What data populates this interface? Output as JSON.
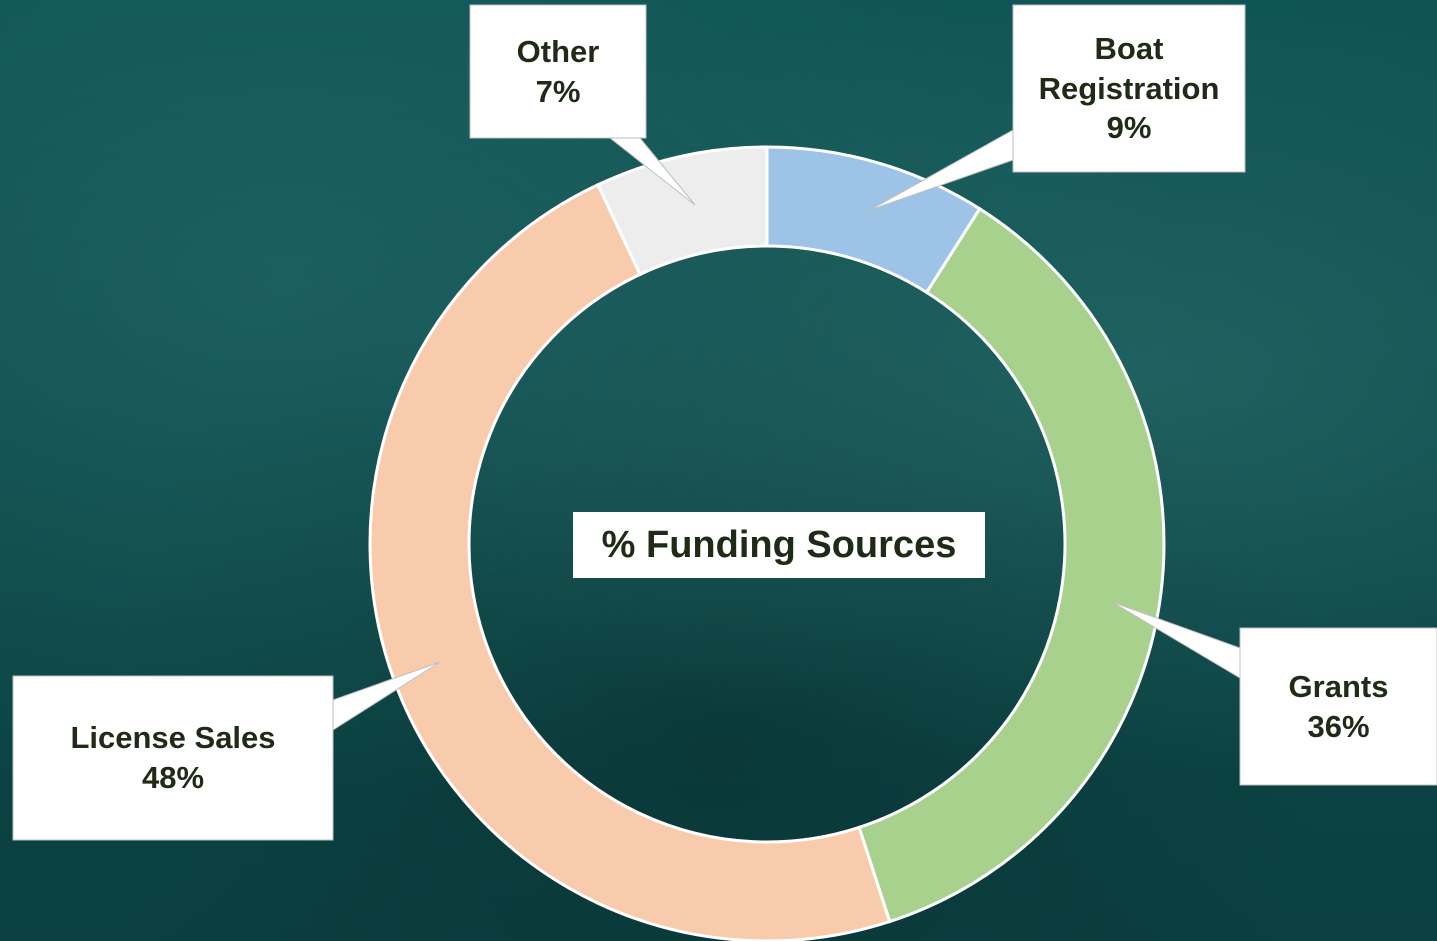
{
  "chart_data": {
    "type": "donut",
    "title": "% Funding Sources",
    "categories": [
      "Boat Registration",
      "Grants",
      "License Sales",
      "Other"
    ],
    "values": [
      9,
      36,
      48,
      7
    ],
    "value_labels": [
      "9%",
      "36%",
      "48%",
      "7%"
    ],
    "colors": [
      "#9dc3e6",
      "#a9d18e",
      "#f8cbad",
      "#ededed"
    ]
  }
}
